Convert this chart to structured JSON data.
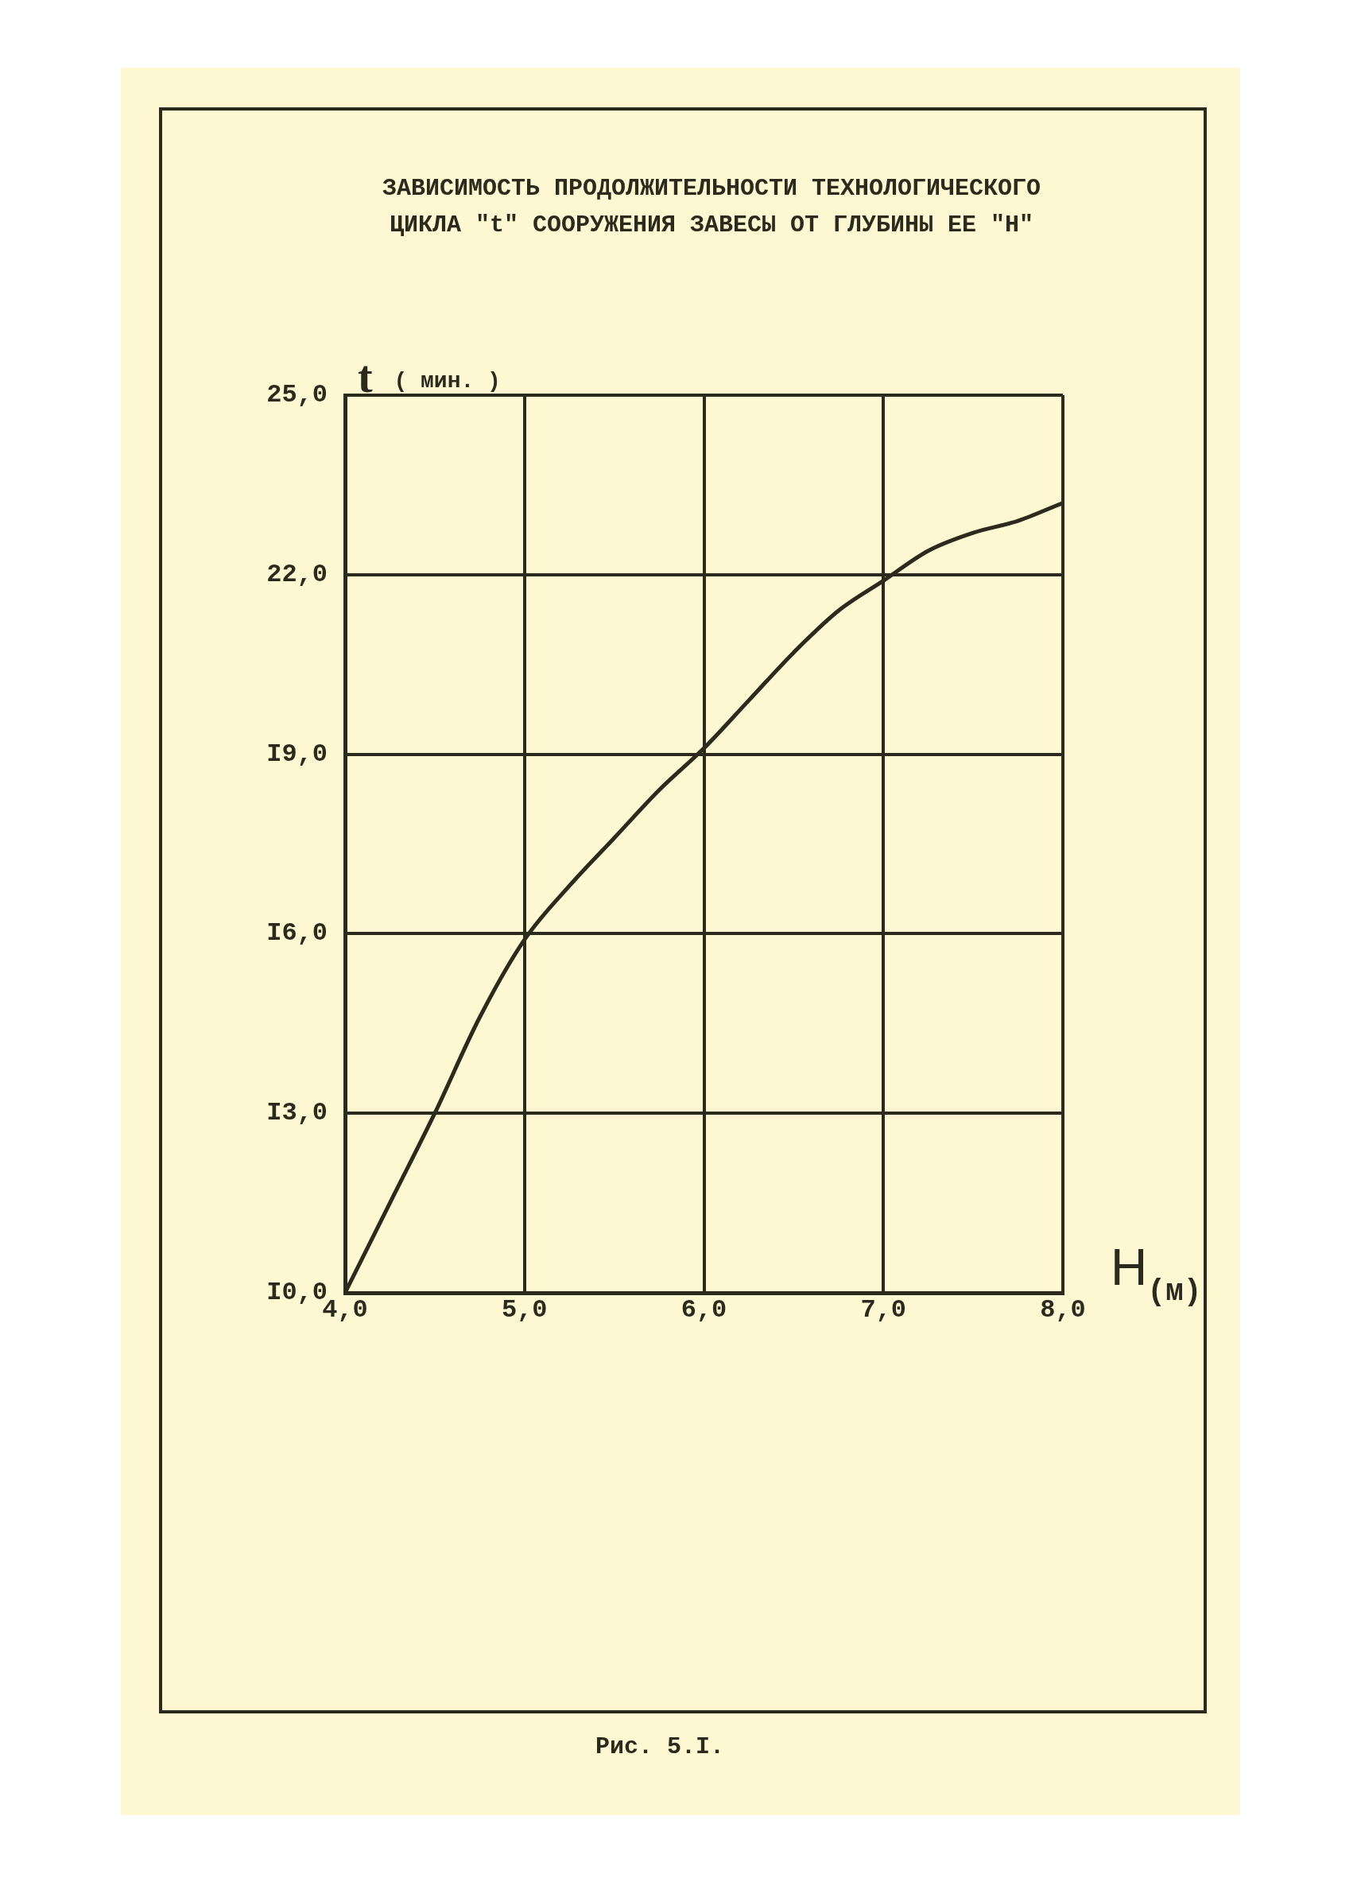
{
  "chart_data": {
    "type": "line",
    "title": "ЗАВИСИМОСТЬ ПРОДОЛЖИТЕЛЬНОСТИ ТЕХНОЛОГИЧЕСКОГО\nЦИКЛА \"t\" СООРУЖЕНИЯ ЗАВЕСЫ ОТ ГЛУБИНЫ ЕЕ \"Н\"",
    "xlabel": "H$_{(м)}$",
    "ylabel": "t ( мин. )",
    "annotations": [
      "Рис. 5.I."
    ],
    "series": [
      {
        "color": "#2b2a1c",
        "x": [
          4.0,
          4.25,
          4.5,
          4.75,
          5.0,
          5.25,
          5.5,
          5.75,
          6.0,
          6.25,
          6.5,
          6.75,
          7.0,
          7.25,
          7.5,
          7.75,
          8.0
        ],
        "values": [
          10.0,
          11.5,
          13.0,
          14.6,
          15.9,
          16.8,
          17.6,
          18.4,
          19.1,
          19.9,
          20.7,
          21.4,
          21.9,
          22.4,
          22.7,
          22.9,
          23.2
        ]
      }
    ],
    "xlim": [
      4,
      8
    ],
    "ylim": [
      10,
      25
    ],
    "xticks": [
      {
        "value": 4,
        "label": "4,0"
      },
      {
        "value": 5,
        "label": "5,0"
      },
      {
        "value": 6,
        "label": "6,0"
      },
      {
        "value": 7,
        "label": "7,0"
      },
      {
        "value": 8,
        "label": "8,0"
      }
    ],
    "yticks": [
      {
        "value": 10,
        "label": "I0,0"
      },
      {
        "value": 13,
        "label": "I3,0"
      },
      {
        "value": 16,
        "label": "I6,0"
      },
      {
        "value": 19,
        "label": "I9,0"
      },
      {
        "value": 22,
        "label": "22,0"
      },
      {
        "value": 25,
        "label": "25,0"
      }
    ],
    "grid": true,
    "legend": false,
    "marker": "none",
    "line_style": "solid"
  }
}
